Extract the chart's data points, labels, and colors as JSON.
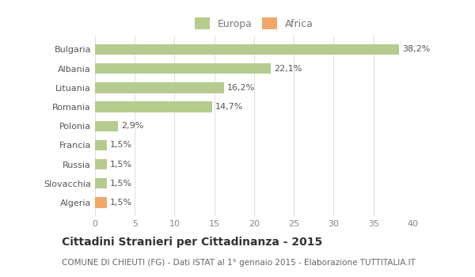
{
  "categories": [
    "Bulgaria",
    "Albania",
    "Lituania",
    "Romania",
    "Polonia",
    "Francia",
    "Russia",
    "Slovacchia",
    "Algeria"
  ],
  "values": [
    38.2,
    22.1,
    16.2,
    14.7,
    2.9,
    1.5,
    1.5,
    1.5,
    1.5
  ],
  "labels": [
    "38,2%",
    "22,1%",
    "16,2%",
    "14,7%",
    "2,9%",
    "1,5%",
    "1,5%",
    "1,5%",
    "1,5%"
  ],
  "colors": [
    "#b5cc8e",
    "#b5cc8e",
    "#b5cc8e",
    "#b5cc8e",
    "#b5cc8e",
    "#b5cc8e",
    "#b5cc8e",
    "#b5cc8e",
    "#f0a868"
  ],
  "legend_labels": [
    "Europa",
    "Africa"
  ],
  "legend_colors": [
    "#b5cc8e",
    "#f0a868"
  ],
  "title": "Cittadini Stranieri per Cittadinanza - 2015",
  "subtitle": "COMUNE DI CHIEUTI (FG) - Dati ISTAT al 1° gennaio 2015 - Elaborazione TUTTITALIA.IT",
  "xlim": [
    0,
    40
  ],
  "xticks": [
    0,
    5,
    10,
    15,
    20,
    25,
    30,
    35,
    40
  ],
  "background_color": "#ffffff",
  "grid_color": "#e0e0e0",
  "bar_height": 0.55,
  "title_fontsize": 10,
  "subtitle_fontsize": 7.5,
  "label_fontsize": 8,
  "tick_fontsize": 8,
  "legend_fontsize": 9
}
